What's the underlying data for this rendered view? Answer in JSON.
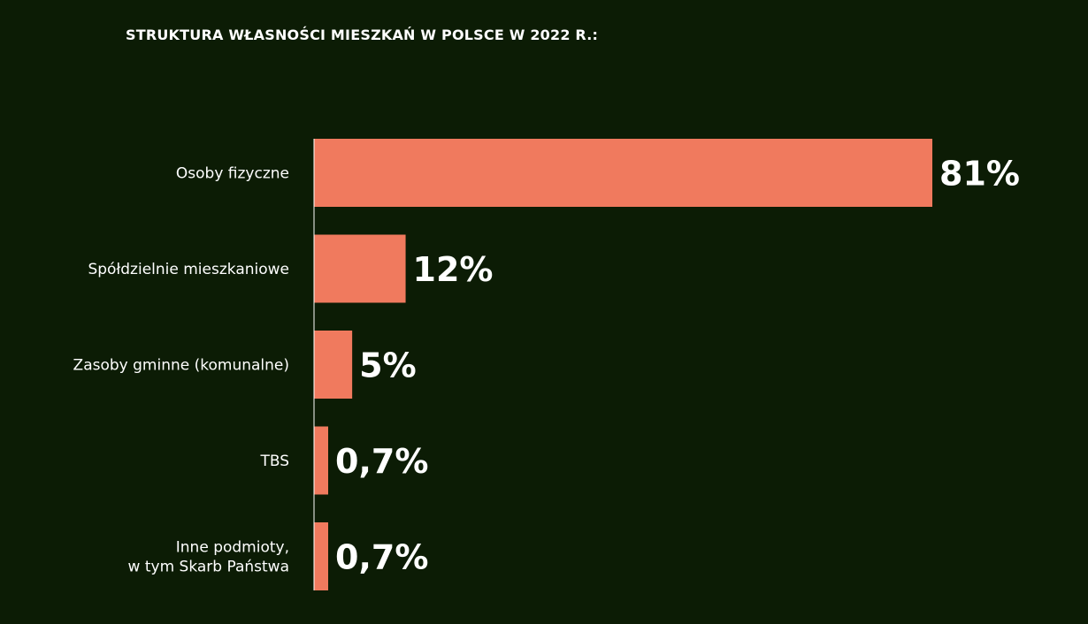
{
  "chart_data": {
    "type": "bar",
    "orientation": "horizontal",
    "title": "STRUKTURA WŁASNOŚCI MIESZKAŃ W POLSCE W 2022 R.:",
    "categories": [
      [
        "Osoby fizyczne"
      ],
      [
        "Spółdzielnie mieszkaniowe"
      ],
      [
        "Zasoby gminne (komunalne)"
      ],
      [
        "TBS"
      ],
      [
        "Inne podmioty,",
        "w tym Skarb Państwa"
      ]
    ],
    "values": [
      81,
      12,
      5,
      0.7,
      0.7
    ],
    "value_labels": [
      "81%",
      "12%",
      "5%",
      "0,7%",
      "0,7%"
    ],
    "xlim": [
      0,
      100
    ],
    "grid": false,
    "legend": "none",
    "colors": {
      "background": "#0c1c05",
      "bar": "#f07a5e",
      "axis": "#ffffff",
      "text": "#ffffff"
    }
  }
}
